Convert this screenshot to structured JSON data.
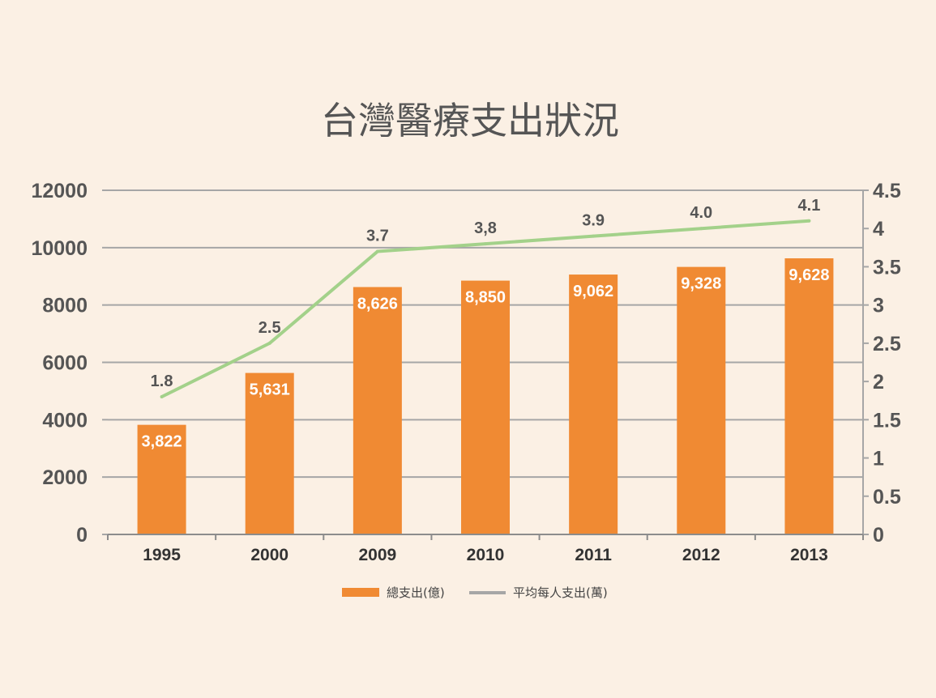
{
  "chart_data": {
    "type": "bar",
    "title": "台灣醫療支出狀況",
    "categories": [
      "1995",
      "2000",
      "2009",
      "2010",
      "2011",
      "2012",
      "2013"
    ],
    "series": [
      {
        "name": "總支出(億)",
        "type": "bar",
        "axis": "left",
        "color": "#F08A33",
        "values": [
          3822,
          5631,
          8626,
          8850,
          9062,
          9328,
          9628
        ],
        "labels": [
          "3,822",
          "5,631",
          "8,626",
          "8,850",
          "9,062",
          "9,328",
          "9,628"
        ]
      },
      {
        "name": "平均每人支出(萬)",
        "type": "line",
        "axis": "right",
        "color": "#A3D18A",
        "legend_color": "#A6A6A6",
        "values": [
          1.8,
          2.5,
          3.7,
          3.8,
          3.9,
          4.0,
          4.1
        ],
        "labels": [
          "1.8",
          "2.5",
          "3.7",
          "3,8",
          "3.9",
          "4.0",
          "4.1"
        ]
      }
    ],
    "y_left": {
      "lim": [
        0,
        12000
      ],
      "ticks": [
        "0",
        "2000",
        "4000",
        "6000",
        "8000",
        "10000",
        "12000"
      ]
    },
    "y_right": {
      "lim": [
        0,
        4.5
      ],
      "ticks": [
        "0",
        "0.5",
        "1",
        "1.5",
        "2",
        "2.5",
        "3",
        "3.5",
        "4",
        "4.5"
      ]
    },
    "grid": true,
    "legend_position": "bottom",
    "colors": {
      "background": "#FBF0E4",
      "grid": "#A6A6A6",
      "text": "#555555"
    }
  }
}
